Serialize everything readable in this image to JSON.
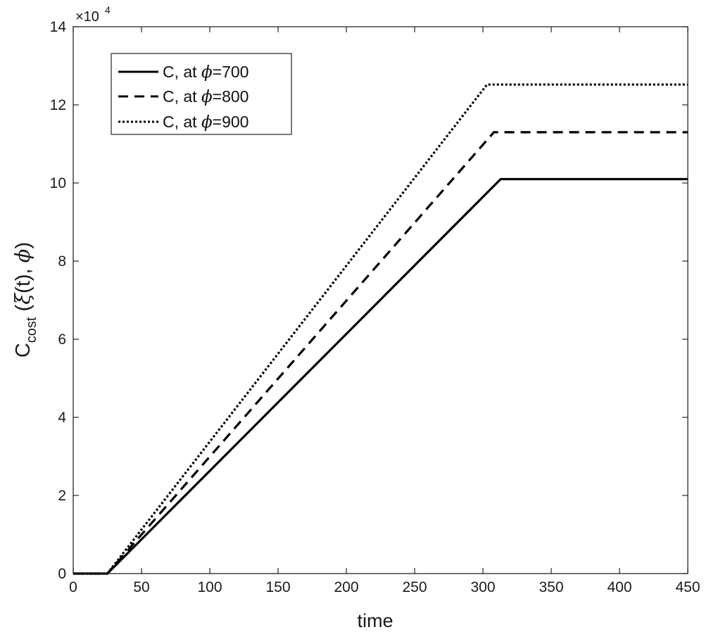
{
  "chart_data": {
    "type": "line",
    "xlabel": "time",
    "ylabel": {
      "main": "C",
      "sub": "cost",
      "rest_prefix": " (",
      "xi": "ξ",
      "rest_mid": "(t), ",
      "phi": "ϕ",
      "rest_suffix": ")"
    },
    "y_multiplier": {
      "base": "×10",
      "exponent": "4"
    },
    "xlim": [
      0,
      450
    ],
    "ylim": [
      0,
      14
    ],
    "x_ticks": [
      0,
      50,
      100,
      150,
      200,
      250,
      300,
      350,
      400,
      450
    ],
    "y_ticks": [
      0,
      2,
      4,
      6,
      8,
      10,
      12,
      14
    ],
    "grid": false,
    "legend_position": "top-left",
    "series": [
      {
        "name": "C, at  ϕ=700",
        "label_prefix": "C, at  ",
        "label_symbol": "ϕ",
        "label_suffix": "=700",
        "style": "solid",
        "x": [
          0,
          25,
          313,
          450
        ],
        "y": [
          0,
          0,
          10.1,
          10.1
        ]
      },
      {
        "name": "C, at  ϕ=800",
        "label_prefix": "C, at  ",
        "label_symbol": "ϕ",
        "label_suffix": "=800",
        "style": "dashed",
        "x": [
          0,
          25,
          308,
          450
        ],
        "y": [
          0,
          0,
          11.3,
          11.3
        ]
      },
      {
        "name": "C, at  ϕ=900",
        "label_prefix": "C, at  ",
        "label_symbol": "ϕ",
        "label_suffix": "=900",
        "style": "dotted",
        "x": [
          0,
          25,
          303,
          450
        ],
        "y": [
          0,
          0,
          12.52,
          12.52
        ]
      }
    ],
    "colors": {
      "line": "#000000",
      "axes": "#262626",
      "background": "#ffffff"
    }
  }
}
